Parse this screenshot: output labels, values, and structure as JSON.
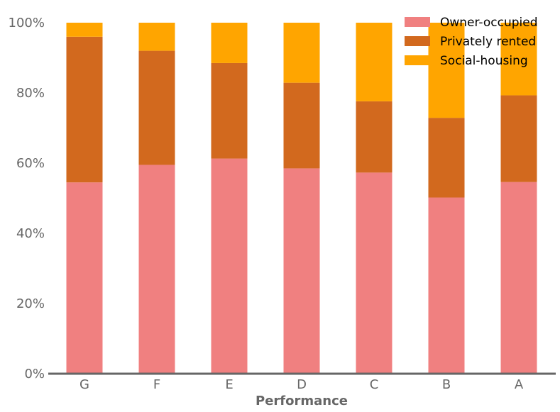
{
  "chart_data": {
    "type": "bar",
    "stacked": true,
    "normalized": true,
    "categories": [
      "G",
      "F",
      "E",
      "D",
      "C",
      "B",
      "A"
    ],
    "series": [
      {
        "name": "Owner-occupied",
        "color": "#f08080",
        "values": [
          54.5,
          59.5,
          61.3,
          58.5,
          57.3,
          50.2,
          54.6
        ]
      },
      {
        "name": "Privately rented",
        "color": "#d2691e",
        "values": [
          41.5,
          32.5,
          27.2,
          24.4,
          20.3,
          22.7,
          24.7
        ]
      },
      {
        "name": "Social-housing",
        "color": "#ffa500",
        "values": [
          4.0,
          8.0,
          11.5,
          17.1,
          22.4,
          27.1,
          20.7
        ]
      }
    ],
    "title": "",
    "xlabel": "Performance",
    "ylabel": "",
    "ylim": [
      0,
      100
    ],
    "yticks": [
      0,
      20,
      40,
      60,
      80,
      100
    ],
    "ytick_labels": [
      "0%",
      "20%",
      "40%",
      "60%",
      "80%",
      "100%"
    ],
    "grid": false,
    "legend": "top-right"
  }
}
